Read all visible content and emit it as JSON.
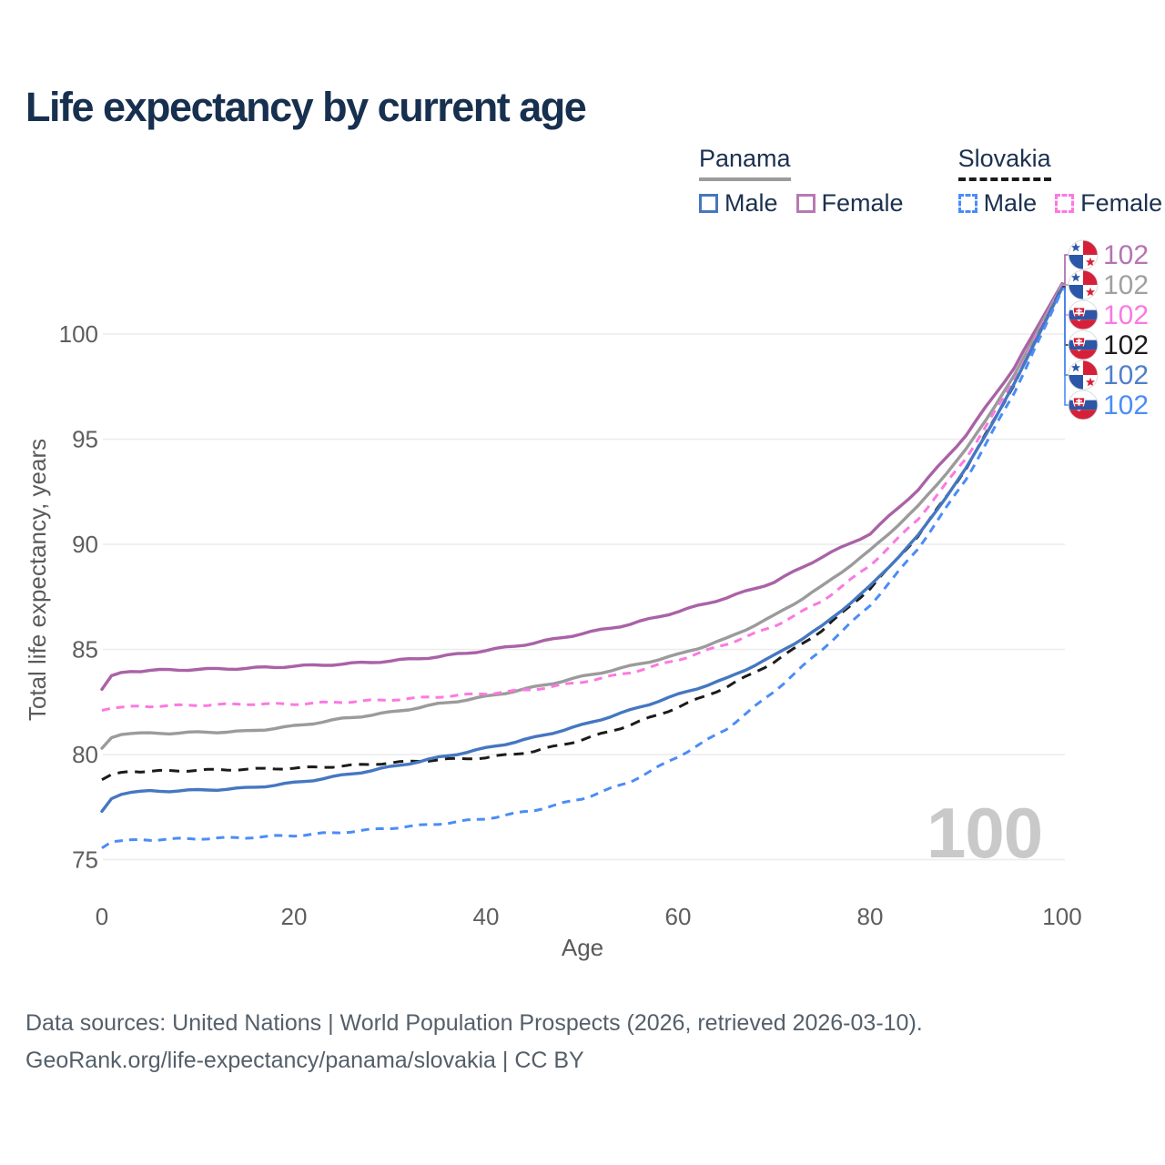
{
  "title": "Life expectancy by current age",
  "legend": {
    "groups": [
      {
        "country": "Panama",
        "line_style": "solid",
        "underline_color": "#9b9b9b",
        "items": [
          {
            "label": "Male",
            "color": "#4577c1"
          },
          {
            "label": "Female",
            "color": "#b779b3"
          }
        ]
      },
      {
        "country": "Slovakia",
        "line_style": "dashed",
        "underline_color": "#1b1b1b",
        "items": [
          {
            "label": "Male",
            "color": "#4b8cf7"
          },
          {
            "label": "Female",
            "color": "#fb79e1"
          }
        ]
      }
    ]
  },
  "watermark": "100",
  "footer": {
    "line1": "Data sources: United Nations | World Population Prospects (2026, retrieved 2026-03-10).",
    "line2": "GeoRank.org/life-expectancy/panama/slovakia | CC BY"
  },
  "chart_data": {
    "type": "line",
    "title": "Life expectancy by current age",
    "xlabel": "Age",
    "ylabel": "Total life expectancy, years",
    "xlim": [
      0,
      100
    ],
    "ylim": [
      75,
      102.5
    ],
    "xticks": [
      0,
      20,
      40,
      60,
      80,
      100
    ],
    "yticks": [
      75,
      80,
      85,
      90,
      95,
      100
    ],
    "grid": "horizontal",
    "colors": {
      "grid": "#ececec",
      "tick_label": "#5e5e5e",
      "axis_title": "#5a5a5a",
      "watermark": "#c9c9c9"
    },
    "series": [
      {
        "country": "Panama",
        "sex": "female",
        "flag": "panama",
        "color": "#aa62a6",
        "label_color": "#b574b1",
        "dash": null,
        "end_label": "102",
        "points": [
          [
            0,
            83.1
          ],
          [
            1,
            83.75
          ],
          [
            2,
            83.9
          ],
          [
            3,
            83.95
          ],
          [
            5,
            84.0
          ],
          [
            10,
            84.05
          ],
          [
            15,
            84.1
          ],
          [
            20,
            84.2
          ],
          [
            25,
            84.3
          ],
          [
            30,
            84.45
          ],
          [
            35,
            84.65
          ],
          [
            40,
            84.95
          ],
          [
            45,
            85.3
          ],
          [
            50,
            85.75
          ],
          [
            55,
            86.2
          ],
          [
            60,
            86.8
          ],
          [
            65,
            87.45
          ],
          [
            70,
            88.2
          ],
          [
            75,
            89.4
          ],
          [
            80,
            90.5
          ],
          [
            85,
            92.6
          ],
          [
            90,
            95.2
          ],
          [
            95,
            98.4
          ],
          [
            100,
            102.4
          ]
        ]
      },
      {
        "country": "Panama",
        "sex": "all",
        "flag": "panama",
        "color": "#9b9b9b",
        "label_color": "#a0a0a0",
        "dash": null,
        "end_label": "102",
        "points": [
          [
            0,
            80.3
          ],
          [
            1,
            80.8
          ],
          [
            2,
            80.95
          ],
          [
            3,
            81.0
          ],
          [
            5,
            81.0
          ],
          [
            10,
            81.05
          ],
          [
            15,
            81.1
          ],
          [
            20,
            81.35
          ],
          [
            25,
            81.7
          ],
          [
            30,
            82.0
          ],
          [
            35,
            82.4
          ],
          [
            40,
            82.75
          ],
          [
            45,
            83.2
          ],
          [
            50,
            83.7
          ],
          [
            55,
            84.2
          ],
          [
            60,
            84.75
          ],
          [
            65,
            85.5
          ],
          [
            70,
            86.6
          ],
          [
            75,
            88.0
          ],
          [
            80,
            89.7
          ],
          [
            85,
            91.8
          ],
          [
            90,
            94.5
          ],
          [
            95,
            98.0
          ],
          [
            100,
            102.35
          ]
        ]
      },
      {
        "country": "Slovakia",
        "sex": "female",
        "flag": "slovakia",
        "color": "#fb79e1",
        "label_color": "#fb79e1",
        "dash": "9 7",
        "end_label": "102",
        "points": [
          [
            0,
            82.1
          ],
          [
            1,
            82.2
          ],
          [
            2,
            82.25
          ],
          [
            3,
            82.3
          ],
          [
            5,
            82.3
          ],
          [
            10,
            82.35
          ],
          [
            15,
            82.4
          ],
          [
            20,
            82.4
          ],
          [
            25,
            82.5
          ],
          [
            30,
            82.6
          ],
          [
            35,
            82.75
          ],
          [
            40,
            82.9
          ],
          [
            45,
            83.1
          ],
          [
            50,
            83.45
          ],
          [
            55,
            83.9
          ],
          [
            60,
            84.5
          ],
          [
            65,
            85.25
          ],
          [
            70,
            86.1
          ],
          [
            75,
            87.3
          ],
          [
            80,
            89.0
          ],
          [
            85,
            91.2
          ],
          [
            90,
            94.1
          ],
          [
            95,
            97.8
          ],
          [
            100,
            102.3
          ]
        ]
      },
      {
        "country": "Slovakia",
        "sex": "all",
        "flag": "slovakia",
        "color": "#1b1b1b",
        "label_color": "#1b1b1b",
        "dash": "11 8",
        "end_label": "102",
        "points": [
          [
            0,
            78.8
          ],
          [
            1,
            79.05
          ],
          [
            2,
            79.15
          ],
          [
            3,
            79.2
          ],
          [
            5,
            79.2
          ],
          [
            10,
            79.25
          ],
          [
            15,
            79.3
          ],
          [
            20,
            79.35
          ],
          [
            25,
            79.45
          ],
          [
            30,
            79.6
          ],
          [
            35,
            79.75
          ],
          [
            40,
            79.85
          ],
          [
            45,
            80.15
          ],
          [
            50,
            80.7
          ],
          [
            55,
            81.4
          ],
          [
            60,
            82.25
          ],
          [
            65,
            83.2
          ],
          [
            70,
            84.4
          ],
          [
            75,
            85.9
          ],
          [
            80,
            87.9
          ],
          [
            85,
            90.4
          ],
          [
            90,
            93.6
          ],
          [
            95,
            97.6
          ],
          [
            100,
            102.25
          ]
        ]
      },
      {
        "country": "Panama",
        "sex": "male",
        "flag": "panama",
        "color": "#4577c1",
        "label_color": "#4f7fca",
        "dash": null,
        "end_label": "102",
        "points": [
          [
            0,
            77.3
          ],
          [
            1,
            77.9
          ],
          [
            2,
            78.1
          ],
          [
            3,
            78.2
          ],
          [
            5,
            78.25
          ],
          [
            10,
            78.3
          ],
          [
            15,
            78.4
          ],
          [
            20,
            78.65
          ],
          [
            25,
            79.0
          ],
          [
            30,
            79.4
          ],
          [
            35,
            79.85
          ],
          [
            40,
            80.3
          ],
          [
            45,
            80.8
          ],
          [
            50,
            81.4
          ],
          [
            55,
            82.1
          ],
          [
            60,
            82.85
          ],
          [
            65,
            83.6
          ],
          [
            70,
            84.7
          ],
          [
            75,
            86.1
          ],
          [
            80,
            88.0
          ],
          [
            85,
            90.4
          ],
          [
            90,
            93.6
          ],
          [
            95,
            97.6
          ],
          [
            100,
            102.2
          ]
        ]
      },
      {
        "country": "Slovakia",
        "sex": "male",
        "flag": "slovakia",
        "color": "#4b8cf7",
        "label_color": "#4b8cf7",
        "dash": "9 7",
        "end_label": "102",
        "points": [
          [
            0,
            75.55
          ],
          [
            1,
            75.85
          ],
          [
            2,
            75.9
          ],
          [
            3,
            75.95
          ],
          [
            5,
            75.95
          ],
          [
            10,
            76.0
          ],
          [
            15,
            76.05
          ],
          [
            20,
            76.15
          ],
          [
            25,
            76.3
          ],
          [
            30,
            76.5
          ],
          [
            35,
            76.7
          ],
          [
            40,
            76.95
          ],
          [
            45,
            77.35
          ],
          [
            50,
            77.9
          ],
          [
            55,
            78.7
          ],
          [
            60,
            79.9
          ],
          [
            65,
            81.2
          ],
          [
            70,
            83.0
          ],
          [
            75,
            85.0
          ],
          [
            80,
            87.1
          ],
          [
            85,
            89.8
          ],
          [
            90,
            93.1
          ],
          [
            95,
            97.2
          ],
          [
            100,
            102.1
          ]
        ]
      }
    ]
  }
}
